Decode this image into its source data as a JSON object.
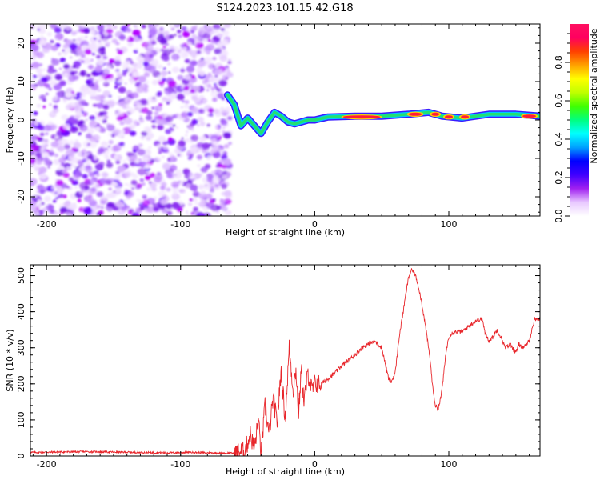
{
  "title": "S124.2023.101.15.42.G18",
  "chart_data": [
    {
      "type": "heatmap",
      "xlabel": "Height of straight line (km)",
      "ylabel": "Frequency (Hz)",
      "xlim": [
        -212,
        168
      ],
      "ylim": [
        -25,
        25
      ],
      "xticks": [
        -200,
        -100,
        0,
        100
      ],
      "yticks": [
        -20,
        -10,
        0,
        10,
        20
      ],
      "colorbar": {
        "label": "Normalized spectral amplitude",
        "ticks": [
          0.0,
          0.2,
          0.4,
          0.6,
          0.8
        ],
        "range": [
          0.0,
          1.0
        ],
        "colors": [
          "#ffffff",
          "#e8c8ff",
          "#a020f0",
          "#4000ff",
          "#0000ff",
          "#00a0ff",
          "#00ffff",
          "#00ff80",
          "#40ff00",
          "#c0ff00",
          "#ffff00",
          "#ffa000",
          "#ff4000",
          "#ff0060",
          "#ff1060"
        ]
      },
      "noise_region": {
        "x_from": -212,
        "x_to": -63
      },
      "ridge": [
        {
          "x": -65,
          "f": 6.5
        },
        {
          "x": -60,
          "f": 4.0
        },
        {
          "x": -55,
          "f": -1.5
        },
        {
          "x": -50,
          "f": 0.5
        },
        {
          "x": -45,
          "f": -1.5
        },
        {
          "x": -40,
          "f": -3.5
        },
        {
          "x": -35,
          "f": -0.5
        },
        {
          "x": -30,
          "f": 2.0
        },
        {
          "x": -25,
          "f": 1.0
        },
        {
          "x": -20,
          "f": -0.5
        },
        {
          "x": -15,
          "f": -1.0
        },
        {
          "x": -10,
          "f": -0.5
        },
        {
          "x": -5,
          "f": 0.0
        },
        {
          "x": 0,
          "f": 0.0
        },
        {
          "x": 10,
          "f": 0.8
        },
        {
          "x": 30,
          "f": 1.0
        },
        {
          "x": 50,
          "f": 1.0
        },
        {
          "x": 70,
          "f": 1.5
        },
        {
          "x": 85,
          "f": 2.0
        },
        {
          "x": 95,
          "f": 1.0
        },
        {
          "x": 110,
          "f": 0.5
        },
        {
          "x": 130,
          "f": 1.5
        },
        {
          "x": 150,
          "f": 1.5
        },
        {
          "x": 168,
          "f": 1.0
        }
      ],
      "hot_spots": [
        {
          "x": 35,
          "f": 0.8,
          "w": 28
        },
        {
          "x": 75,
          "f": 1.5,
          "w": 10
        },
        {
          "x": 90,
          "f": 1.5,
          "w": 6
        },
        {
          "x": 100,
          "f": 0.8,
          "w": 6
        },
        {
          "x": 112,
          "f": 0.8,
          "w": 6
        },
        {
          "x": 160,
          "f": 1.0,
          "w": 10
        }
      ]
    },
    {
      "type": "line",
      "xlabel": "Height of straight line (km)",
      "ylabel": "SNR (10 * v/v)",
      "xlim": [
        -212,
        168
      ],
      "ylim": [
        0,
        530
      ],
      "xticks": [
        -200,
        -100,
        0,
        100
      ],
      "yticks": [
        0,
        100,
        200,
        300,
        400,
        500
      ],
      "series": [
        {
          "color": "#e8262b",
          "x": [
            -212,
            -190,
            -170,
            -150,
            -130,
            -110,
            -90,
            -70,
            -60,
            -52,
            -48,
            -45,
            -42,
            -40,
            -37,
            -34,
            -31,
            -28,
            -25,
            -22,
            -19,
            -16,
            -14,
            -12,
            -10,
            -8,
            -5,
            -2,
            0,
            5,
            10,
            15,
            20,
            25,
            30,
            35,
            40,
            45,
            50,
            55,
            57,
            60,
            63,
            66,
            68,
            70,
            72,
            74,
            76,
            78,
            80,
            83,
            86,
            88,
            90,
            92,
            94,
            96,
            98,
            100,
            102,
            105,
            110,
            115,
            120,
            125,
            127,
            130,
            133,
            136,
            140,
            142,
            146,
            150,
            152,
            156,
            160,
            164,
            168
          ],
          "y": [
            10,
            11,
            12,
            11,
            10,
            9,
            10,
            8,
            8,
            15,
            60,
            20,
            100,
            5,
            140,
            60,
            160,
            90,
            240,
            100,
            300,
            180,
            240,
            120,
            240,
            150,
            230,
            180,
            200,
            200,
            215,
            230,
            250,
            265,
            280,
            300,
            310,
            318,
            300,
            215,
            205,
            230,
            330,
            400,
            450,
            495,
            515,
            510,
            490,
            460,
            420,
            350,
            270,
            190,
            140,
            130,
            160,
            220,
            290,
            330,
            340,
            345,
            345,
            360,
            375,
            380,
            340,
            320,
            330,
            350,
            320,
            300,
            310,
            285,
            310,
            300,
            320,
            380,
            380
          ]
        }
      ]
    }
  ]
}
